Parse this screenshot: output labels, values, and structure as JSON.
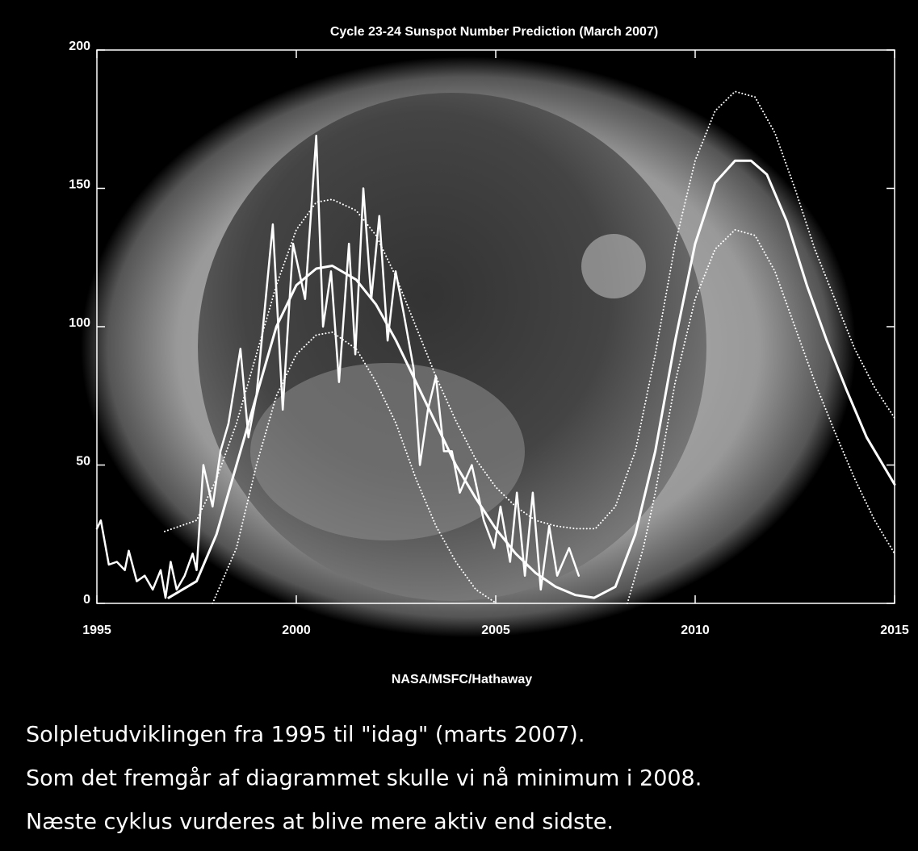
{
  "chart_data": {
    "type": "line",
    "title": "Cycle 23-24 Sunspot Number Prediction (March 2007)",
    "credit": "NASA/MSFC/Hathaway",
    "caption": [
      "Solpletudviklingen fra 1995 til \"idag\" (marts 2007).",
      "Som det fremgår af diagrammet skulle vi nå minimum i 2008.",
      "Næste cyklus vurderes at blive mere aktiv end sidste."
    ],
    "xlim": [
      1995,
      2015
    ],
    "xticks": [
      1995,
      2000,
      2005,
      2010,
      2015
    ],
    "ylim": [
      0,
      200
    ],
    "yticks": [
      0,
      50,
      100,
      150,
      200
    ],
    "series": [
      {
        "color": "#ffffff",
        "style": "solid",
        "width": 2.5,
        "x": [
          1995.0,
          1995.1,
          1995.3,
          1995.5,
          1995.7,
          1995.8,
          1996.0,
          1996.2,
          1996.4,
          1996.6,
          1996.72,
          1996.85,
          1997.0,
          1997.2,
          1997.4,
          1997.5,
          1997.67,
          1997.9,
          1998.1,
          1998.3,
          1998.6,
          1998.8,
          1999.0,
          1999.41,
          1999.66,
          1999.92,
          2000.22,
          2000.5,
          2000.67,
          2000.87,
          2001.07,
          2001.32,
          2001.48,
          2001.68,
          2001.88,
          2002.08,
          2002.29,
          2002.49,
          2002.69,
          2002.94,
          2003.1,
          2003.3,
          2003.5,
          2003.7,
          2003.9,
          2004.1,
          2004.4,
          2004.7,
          2004.96,
          2005.12,
          2005.36,
          2005.53,
          2005.73,
          2005.93,
          2006.13,
          2006.34,
          2006.54,
          2006.84,
          2007.08
        ],
        "values": [
          27,
          30,
          14,
          15,
          12,
          19,
          8,
          10,
          5,
          12,
          2,
          15,
          5,
          10,
          18,
          12,
          50,
          35,
          55,
          65,
          92,
          60,
          75,
          137,
          70,
          130,
          110,
          169,
          100,
          120,
          80,
          130,
          90,
          150,
          110,
          140,
          95,
          120,
          105,
          85,
          50,
          70,
          82,
          55,
          55,
          40,
          50,
          30,
          20,
          35,
          15,
          40,
          10,
          40,
          5,
          28,
          10,
          20,
          10
        ]
      },
      {
        "color": "#ffffff",
        "style": "solid",
        "width": 3,
        "x": [
          1996.8,
          1997.5,
          1998.0,
          1998.5,
          1999.0,
          1999.5,
          2000.0,
          2000.5,
          2000.9,
          2001.5,
          2002.0,
          2002.5,
          2003.0,
          2003.5,
          2004.0,
          2004.5,
          2005.0,
          2005.5,
          2006.0,
          2006.5,
          2007.0,
          2007.47,
          2008.0,
          2008.5,
          2009.0,
          2009.5,
          2010.0,
          2010.5,
          2011.0,
          2011.4,
          2011.8,
          2012.3,
          2012.8,
          2013.3,
          2013.8,
          2014.3,
          2015.0
        ],
        "values": [
          2,
          8,
          25,
          50,
          75,
          100,
          115,
          121,
          122,
          117,
          108,
          95,
          80,
          65,
          50,
          38,
          27,
          18,
          11,
          6,
          3,
          2,
          6,
          25,
          55,
          95,
          130,
          152,
          160,
          160,
          155,
          138,
          115,
          95,
          77,
          60,
          43
        ]
      },
      {
        "color": "#ffffff",
        "style": "dotted",
        "width": 2,
        "x": [
          1996.7,
          1997.5,
          1998.0,
          1998.5,
          1999.0,
          1999.5,
          2000.0,
          2000.5,
          2000.9,
          2001.5,
          2002.0,
          2002.5,
          2003.0,
          2003.5,
          2004.0,
          2004.5,
          2005.0,
          2005.5,
          2006.0,
          2006.5,
          2007.0,
          2007.5,
          2008.0,
          2008.5,
          2009.0,
          2009.5,
          2010.0,
          2010.5,
          2011.0,
          2011.5,
          2012.0,
          2012.5,
          2013.0,
          2013.5,
          2014.0,
          2014.5,
          2015.0
        ],
        "values": [
          26,
          30,
          45,
          65,
          90,
          115,
          135,
          145,
          146,
          142,
          133,
          118,
          100,
          82,
          66,
          52,
          42,
          35,
          30,
          28,
          27,
          27,
          35,
          55,
          90,
          130,
          160,
          178,
          185,
          183,
          170,
          150,
          128,
          110,
          92,
          78,
          67
        ]
      },
      {
        "color": "#ffffff",
        "style": "dotted",
        "width": 2,
        "x": [
          1997.9,
          1998.5,
          1999.0,
          1999.5,
          2000.0,
          2000.5,
          2000.9,
          2001.5,
          2002.0,
          2002.5,
          2003.0,
          2003.5,
          2004.0,
          2004.5,
          2005.02,
          2006.5,
          2008.3,
          2008.7,
          2009.0,
          2009.5,
          2010.0,
          2010.5,
          2011.0,
          2011.5,
          2012.0,
          2012.5,
          2013.0,
          2013.5,
          2014.0,
          2014.5,
          2015.0
        ],
        "values": [
          0,
          20,
          50,
          75,
          90,
          97,
          98,
          92,
          80,
          65,
          45,
          28,
          15,
          5,
          0,
          null,
          0,
          20,
          40,
          80,
          110,
          128,
          135,
          133,
          120,
          100,
          80,
          62,
          45,
          30,
          18
        ]
      }
    ]
  }
}
